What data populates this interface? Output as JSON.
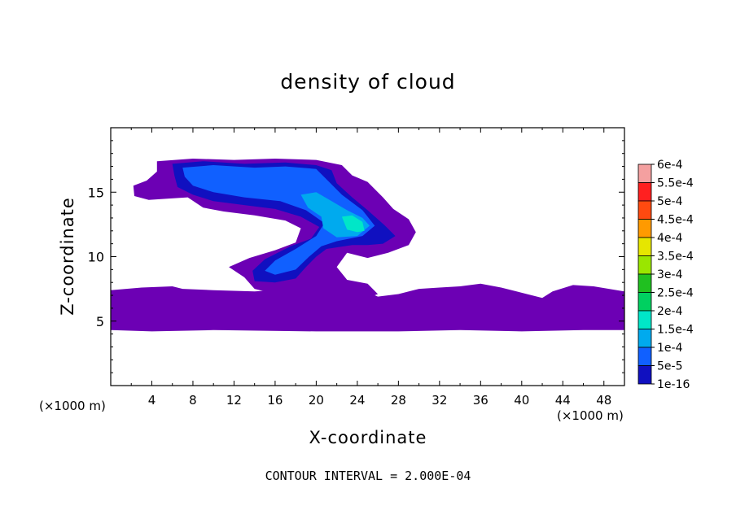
{
  "chart_data": {
    "type": "heatmap",
    "title": "density of cloud",
    "xlabel": "X-coordinate",
    "ylabel": "Z-coordinate",
    "x_unit": "(×1000 m)",
    "y_unit": "(×1000 m)",
    "xlim": [
      0,
      50
    ],
    "ylim": [
      0,
      20
    ],
    "x_ticks": [
      4,
      8,
      12,
      16,
      20,
      24,
      28,
      32,
      36,
      40,
      44,
      48
    ],
    "y_ticks": [
      5,
      10,
      15
    ],
    "footer": "CONTOUR INTERVAL = 2.000E-04",
    "colorbar": {
      "levels": [
        "6e-4",
        "5.5e-4",
        "5e-4",
        "4.5e-4",
        "4e-4",
        "3.5e-4",
        "3e-4",
        "2.5e-4",
        "2e-4",
        "1.5e-4",
        "1e-4",
        "5e-5",
        "1e-16"
      ],
      "colors": [
        "#f4a0a0",
        "#ff2020",
        "#ff4a10",
        "#ff9a00",
        "#e6e600",
        "#9ae600",
        "#20c020",
        "#00d060",
        "#00e6c8",
        "#00aaee",
        "#1060ff",
        "#1010c0",
        "#6c00b4"
      ]
    },
    "regions": [
      {
        "level": "1e-16",
        "name": "lower cloud band",
        "outline": [
          [
            0,
            7.4
          ],
          [
            3,
            7.6
          ],
          [
            6,
            7.7
          ],
          [
            7,
            7.5
          ],
          [
            10,
            7.4
          ],
          [
            14,
            7.3
          ],
          [
            18,
            7.5
          ],
          [
            22,
            7.4
          ],
          [
            24,
            7.6
          ],
          [
            26,
            6.9
          ],
          [
            28,
            7.1
          ],
          [
            30,
            7.5
          ],
          [
            32,
            7.6
          ],
          [
            34,
            7.7
          ],
          [
            36,
            7.9
          ],
          [
            38,
            7.6
          ],
          [
            40,
            7.2
          ],
          [
            42,
            6.8
          ],
          [
            43,
            7.3
          ],
          [
            45,
            7.8
          ],
          [
            47,
            7.7
          ],
          [
            50,
            7.3
          ],
          [
            50,
            4.3
          ],
          [
            46,
            4.3
          ],
          [
            40,
            4.2
          ],
          [
            34,
            4.3
          ],
          [
            28,
            4.2
          ],
          [
            20,
            4.2
          ],
          [
            10,
            4.3
          ],
          [
            4,
            4.2
          ],
          [
            0,
            4.3
          ]
        ]
      },
      {
        "level": "1e-16",
        "name": "upper cloud mass",
        "outline": [
          [
            4.5,
            17.4
          ],
          [
            8,
            17.6
          ],
          [
            12,
            17.5
          ],
          [
            16,
            17.6
          ],
          [
            20,
            17.5
          ],
          [
            22.5,
            17.1
          ],
          [
            23.5,
            16.3
          ],
          [
            25,
            15.8
          ],
          [
            26.5,
            14.6
          ],
          [
            27.5,
            13.7
          ],
          [
            29,
            12.9
          ],
          [
            29.7,
            11.9
          ],
          [
            29,
            10.9
          ],
          [
            27,
            10.3
          ],
          [
            25,
            9.9
          ],
          [
            23,
            10.3
          ],
          [
            22,
            9.2
          ],
          [
            23,
            8.2
          ],
          [
            25,
            7.9
          ],
          [
            26,
            7.1
          ],
          [
            25,
            6.8
          ],
          [
            23.5,
            6.5
          ],
          [
            22,
            6.8
          ],
          [
            19,
            7.3
          ],
          [
            16,
            7.1
          ],
          [
            14,
            7.5
          ],
          [
            13,
            8.4
          ],
          [
            11.5,
            9.2
          ],
          [
            13.5,
            9.9
          ],
          [
            16,
            10.5
          ],
          [
            18,
            11.1
          ],
          [
            18.5,
            12.2
          ],
          [
            17,
            12.8
          ],
          [
            14,
            13.2
          ],
          [
            11,
            13.5
          ],
          [
            9,
            13.8
          ],
          [
            7.5,
            14.6
          ],
          [
            5.5,
            14.5
          ],
          [
            3.7,
            14.4
          ],
          [
            2.3,
            14.7
          ],
          [
            2.2,
            15.5
          ],
          [
            3.5,
            15.9
          ],
          [
            4.5,
            16.6
          ]
        ]
      },
      {
        "level": "5e-5",
        "name": "dark core",
        "outline": [
          [
            6,
            17.2
          ],
          [
            9,
            17.4
          ],
          [
            13,
            17.2
          ],
          [
            17,
            17.3
          ],
          [
            20,
            17.1
          ],
          [
            21.5,
            16.7
          ],
          [
            22,
            15.7
          ],
          [
            23.5,
            14.6
          ],
          [
            25,
            13.6
          ],
          [
            26.7,
            12.4
          ],
          [
            27.7,
            11.6
          ],
          [
            26.5,
            11
          ],
          [
            25,
            10.9
          ],
          [
            23.5,
            10.9
          ],
          [
            21,
            10.6
          ],
          [
            20,
            10
          ],
          [
            19,
            9.2
          ],
          [
            18,
            8.3
          ],
          [
            16,
            8
          ],
          [
            14,
            8.1
          ],
          [
            13.8,
            8.9
          ],
          [
            15,
            9.8
          ],
          [
            17.5,
            10.8
          ],
          [
            19.5,
            11.4
          ],
          [
            20.3,
            12.3
          ],
          [
            18.5,
            13.1
          ],
          [
            16,
            13.7
          ],
          [
            13,
            14
          ],
          [
            10,
            14.3
          ],
          [
            8,
            14.8
          ],
          [
            6.5,
            15.4
          ],
          [
            6.2,
            16.3
          ]
        ]
      },
      {
        "level": "1e-4",
        "name": "blue core",
        "outline": [
          [
            7,
            16.9
          ],
          [
            10,
            17.1
          ],
          [
            14,
            16.9
          ],
          [
            17,
            17
          ],
          [
            20,
            16.8
          ],
          [
            21,
            16
          ],
          [
            22.5,
            14.8
          ],
          [
            24.5,
            13.6
          ],
          [
            25.7,
            12.4
          ],
          [
            24.5,
            11.6
          ],
          [
            22,
            11.2
          ],
          [
            20.5,
            10.8
          ],
          [
            19.3,
            10
          ],
          [
            18,
            9
          ],
          [
            16,
            8.6
          ],
          [
            15,
            8.9
          ],
          [
            16,
            9.7
          ],
          [
            18,
            10.6
          ],
          [
            20,
            11.6
          ],
          [
            20.8,
            12.6
          ],
          [
            19,
            13.6
          ],
          [
            16.5,
            14.3
          ],
          [
            13,
            14.6
          ],
          [
            10,
            15
          ],
          [
            8,
            15.5
          ],
          [
            7.2,
            16.2
          ]
        ]
      },
      {
        "level": "1.5e-4",
        "name": "light blue core",
        "outline": [
          [
            18.5,
            14.8
          ],
          [
            20,
            15
          ],
          [
            21.5,
            14.3
          ],
          [
            23,
            13.6
          ],
          [
            24.5,
            13
          ],
          [
            25.2,
            12.4
          ],
          [
            24,
            11.6
          ],
          [
            22,
            11.5
          ],
          [
            20.7,
            12.2
          ],
          [
            20.5,
            13.1
          ],
          [
            19.2,
            13.8
          ]
        ]
      },
      {
        "level": "2e-4",
        "name": "cyan core",
        "outline": [
          [
            22.5,
            13.1
          ],
          [
            23.5,
            13.2
          ],
          [
            24.5,
            12.7
          ],
          [
            24.7,
            12
          ],
          [
            24,
            11.9
          ],
          [
            23,
            12.1
          ]
        ]
      }
    ]
  }
}
